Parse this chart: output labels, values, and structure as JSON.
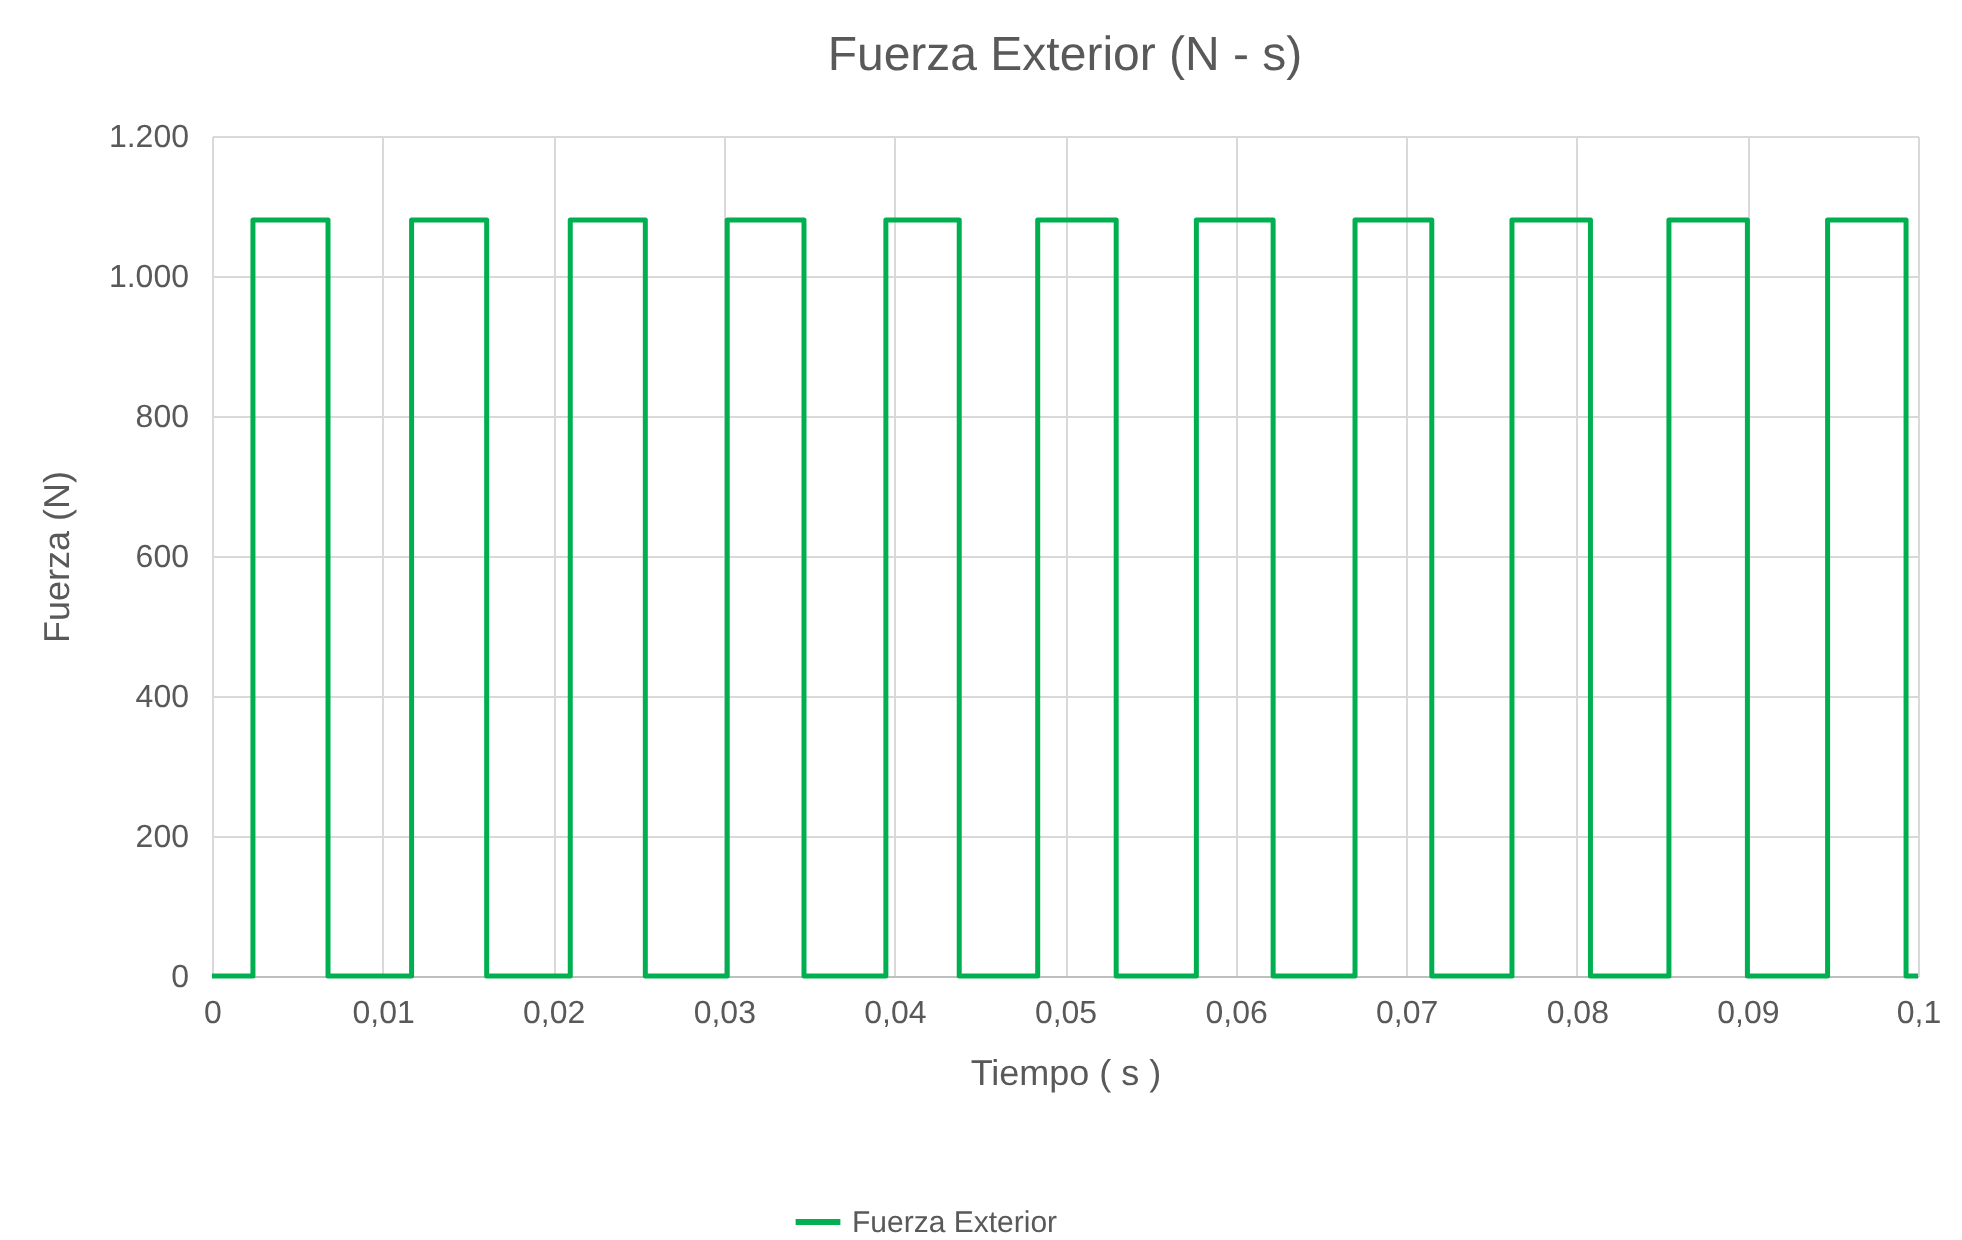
{
  "chart_data": {
    "type": "line",
    "title": "Fuerza Exterior (N - s)",
    "xlabel": "Tiempo ( s )",
    "ylabel": "Fuerza (N)",
    "series": [
      {
        "name": "Fuerza Exterior",
        "color": "#00b050",
        "x": [
          0,
          0.0024,
          0.0024,
          0.0068,
          0.0068,
          0.0117,
          0.0117,
          0.0161,
          0.0161,
          0.021,
          0.021,
          0.0254,
          0.0254,
          0.0302,
          0.0302,
          0.0347,
          0.0347,
          0.0395,
          0.0395,
          0.0438,
          0.0438,
          0.0484,
          0.0484,
          0.053,
          0.053,
          0.0577,
          0.0577,
          0.0622,
          0.0622,
          0.067,
          0.067,
          0.0715,
          0.0715,
          0.0762,
          0.0762,
          0.0808,
          0.0808,
          0.0854,
          0.0854,
          0.09,
          0.09,
          0.0947,
          0.0947,
          0.0993,
          0.0993,
          0.1
        ],
        "values": [
          0,
          0,
          1080,
          1080,
          0,
          0,
          1080,
          1080,
          0,
          0,
          1080,
          1080,
          0,
          0,
          1080,
          1080,
          0,
          0,
          1080,
          1080,
          0,
          0,
          1080,
          1080,
          0,
          0,
          1080,
          1080,
          0,
          0,
          1080,
          1080,
          0,
          0,
          1080,
          1080,
          0,
          0,
          1080,
          1080,
          0,
          0,
          1080,
          1080,
          0,
          0
        ]
      }
    ],
    "xlim": [
      0,
      0.1
    ],
    "ylim": [
      0,
      1200
    ],
    "xticks": [
      0,
      {
        "value": 0.01,
        "label": "0,01"
      },
      {
        "value": 0.02,
        "label": "0,02"
      },
      {
        "value": 0.03,
        "label": "0,03"
      },
      {
        "value": 0.04,
        "label": "0,04"
      },
      {
        "value": 0.05,
        "label": "0,05"
      },
      {
        "value": 0.06,
        "label": "0,06"
      },
      {
        "value": 0.07,
        "label": "0,07"
      },
      {
        "value": 0.08,
        "label": "0,08"
      },
      {
        "value": 0.09,
        "label": "0,09"
      },
      {
        "value": 0.1,
        "label": "0,1"
      }
    ],
    "yticks": [
      0,
      200,
      400,
      600,
      800,
      {
        "value": 1000,
        "label": "1.000"
      },
      {
        "value": 1200,
        "label": "1.200"
      }
    ],
    "grid": true,
    "legend": "bottom",
    "marker": "none",
    "line_style": "solid"
  }
}
